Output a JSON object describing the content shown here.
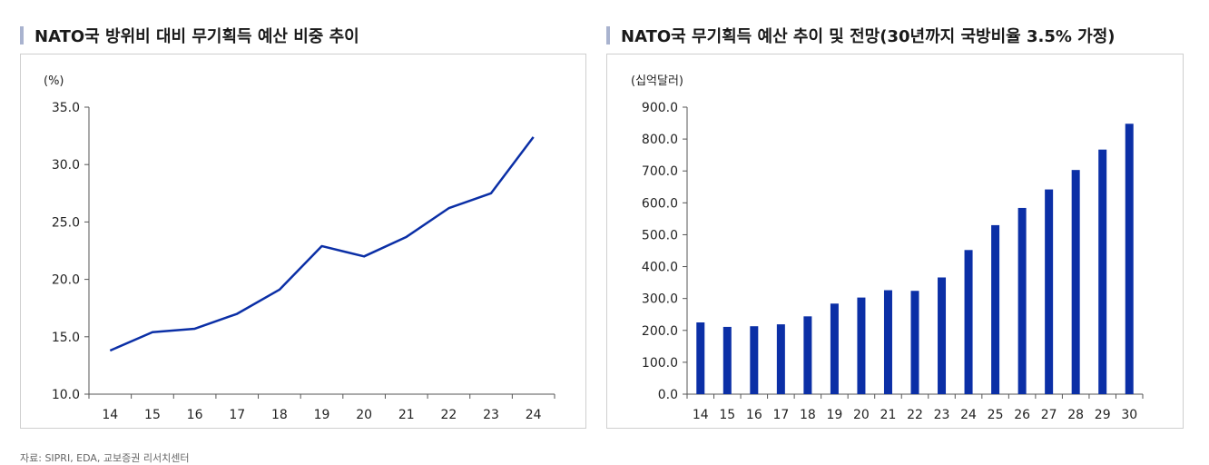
{
  "charts": [
    {
      "panel_title": "NATO국 방위비 대비 무기획득 예산 비중 추이",
      "chart_data": {
        "type": "line",
        "unit_label": "(%)",
        "categories": [
          "14",
          "15",
          "16",
          "17",
          "18",
          "19",
          "20",
          "21",
          "22",
          "23",
          "24"
        ],
        "series": [
          {
            "values": [
              13.8,
              15.4,
              15.7,
              17.0,
              19.1,
              22.9,
              22.0,
              23.7,
              26.2,
              27.5,
              32.4
            ]
          }
        ],
        "ylim": [
          10.0,
          35.0
        ],
        "yticks": [
          "10.0",
          "15.0",
          "20.0",
          "25.0",
          "30.0",
          "35.0"
        ],
        "grid": false,
        "color": "#0b2fa6"
      }
    },
    {
      "panel_title": "NATO국 무기획득 예산 추이 및 전망(30년까지 국방비율 3.5% 가정)",
      "chart_data": {
        "type": "bar",
        "unit_label": "(십억달러)",
        "categories": [
          "14",
          "15",
          "16",
          "17",
          "18",
          "19",
          "20",
          "21",
          "22",
          "23",
          "24",
          "25",
          "26",
          "27",
          "28",
          "29",
          "30"
        ],
        "series": [
          {
            "values": [
              225,
              211,
              213,
              219,
              244,
              284,
              303,
              326,
              324,
              366,
              452,
              530,
              584,
              642,
              703,
              767,
              848
            ]
          }
        ],
        "ylim": [
          0.0,
          900.0
        ],
        "yticks": [
          "0.0",
          "100.0",
          "200.0",
          "300.0",
          "400.0",
          "500.0",
          "600.0",
          "700.0",
          "800.0",
          "900.0"
        ],
        "grid": false,
        "color": "#0b2fa6"
      }
    }
  ],
  "source": "자료: SIPRI, EDA, 교보증권 리서치센터"
}
